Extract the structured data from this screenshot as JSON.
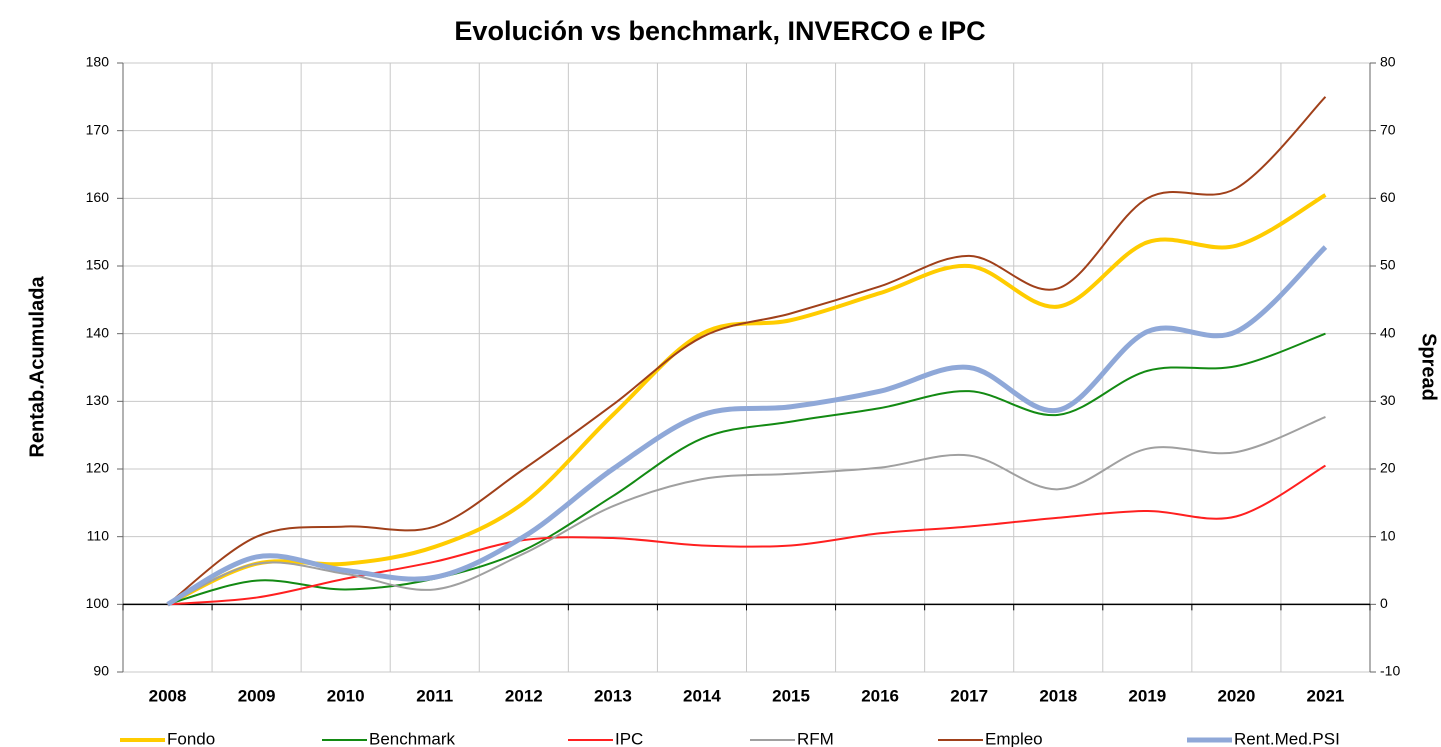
{
  "chart_data": {
    "type": "line",
    "title": "Evolución vs benchmark, INVERCO e IPC",
    "y_label": "Rentab.Acumulada",
    "y2_label": "Spread",
    "categories": [
      "2008",
      "2009",
      "2010",
      "2011",
      "2012",
      "2013",
      "2014",
      "2015",
      "2016",
      "2017",
      "2018",
      "2019",
      "2020",
      "2021"
    ],
    "ylim": [
      90,
      180
    ],
    "yticks": [
      90,
      100,
      110,
      120,
      130,
      140,
      150,
      160,
      170,
      180
    ],
    "y2lim": [
      -10,
      80
    ],
    "y2ticks": [
      -10,
      0,
      10,
      20,
      30,
      40,
      50,
      60,
      70,
      80
    ],
    "grid": true,
    "smooth": true,
    "legend": "bottom",
    "series": [
      {
        "name": "Fondo",
        "color": "#ffcc00",
        "width": 4,
        "values": [
          100,
          106,
          106,
          108.5,
          115,
          128,
          140,
          142,
          146,
          150,
          144,
          153.5,
          153,
          160.5
        ]
      },
      {
        "name": "Benchmark",
        "color": "#138a13",
        "width": 2,
        "values": [
          100,
          103.5,
          102.2,
          103.8,
          108,
          116,
          124.5,
          127,
          129,
          131.5,
          128,
          134.5,
          135.2,
          140
        ]
      },
      {
        "name": "IPC",
        "color": "#ff2020",
        "width": 2,
        "values": [
          100,
          101,
          103.8,
          106.3,
          109.5,
          109.8,
          108.7,
          108.7,
          110.5,
          111.5,
          112.8,
          113.8,
          113,
          120.5
        ]
      },
      {
        "name": "RFM",
        "color": "#a0a0a0",
        "width": 2,
        "values": [
          100,
          106,
          104.5,
          102.2,
          107.5,
          114.5,
          118.5,
          119.3,
          120.2,
          122,
          117,
          123,
          122.5,
          127.7
        ]
      },
      {
        "name": "Empleo",
        "color": "#a0401a",
        "width": 2,
        "values": [
          100,
          110,
          111.5,
          111.5,
          120,
          129.5,
          139.5,
          143,
          147,
          151.5,
          146.7,
          160,
          161.5,
          175
        ]
      },
      {
        "name": "Rent.Med.PSI",
        "color": "#8fa8d8",
        "width": 5,
        "values": [
          100,
          107,
          105,
          104,
          110,
          120,
          128,
          129.2,
          131.5,
          135,
          128.7,
          140.3,
          140.3,
          152.8
        ]
      }
    ]
  }
}
